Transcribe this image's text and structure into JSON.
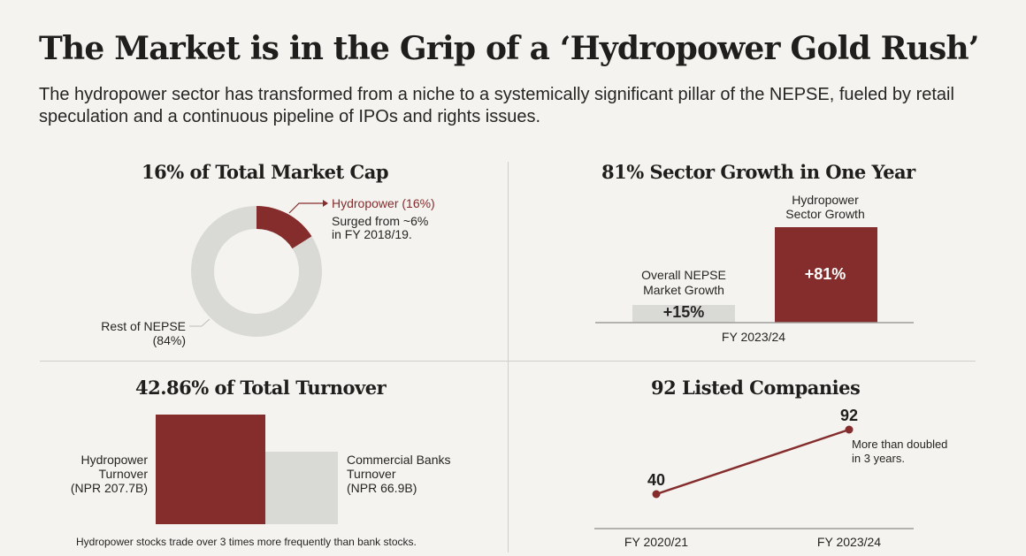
{
  "header": {
    "title": "The Market is in the Grip of a ‘Hydropower Gold Rush’",
    "subtitle": "The hydropower sector has transformed from a niche to a systemically significant pillar of the NEPSE, fueled by retail speculation and a continuous pipeline of IPOs and rights issues."
  },
  "colors": {
    "accent": "#852d2d",
    "muted": "#d9d9d6",
    "background": "#f4f3ef",
    "text": "#1f1e1c"
  },
  "chart_data": [
    {
      "id": "market-cap",
      "type": "pie",
      "title": "16% of Total Market Cap",
      "slices": [
        {
          "name": "Hydropower",
          "value": 16,
          "label": "Hydropower (16%)",
          "note": [
            "Surged from ~6%",
            "in FY 2018/19."
          ]
        },
        {
          "name": "Rest of NEPSE",
          "value": 84,
          "label": [
            "Rest of NEPSE",
            "(84%)"
          ]
        }
      ]
    },
    {
      "id": "sector-growth",
      "type": "bar",
      "title": "81% Sector Growth in One Year",
      "xlabel": "FY 2023/24",
      "categories": [
        "Overall NEPSE Market Growth",
        "Hydropower Sector Growth"
      ],
      "category_labels": [
        [
          "Overall NEPSE",
          "Market Growth"
        ],
        [
          "Hydropower",
          "Sector Growth"
        ]
      ],
      "values": [
        15,
        81
      ],
      "value_labels": [
        "+15%",
        "+81%"
      ],
      "ylim": [
        0,
        81
      ]
    },
    {
      "id": "turnover",
      "type": "bar",
      "title": "42.86% of Total Turnover",
      "categories": [
        "Hydropower Turnover",
        "Commercial Banks Turnover"
      ],
      "category_labels": [
        [
          "Hydropower",
          "Turnover",
          "(NPR 207.7B)"
        ],
        [
          "Commercial Banks",
          "Turnover",
          "(NPR 66.9B)"
        ]
      ],
      "values": [
        207.7,
        66.9
      ],
      "unit": "NPR B",
      "footnote": "Hydropower stocks trade over 3 times more frequently than bank stocks."
    },
    {
      "id": "listed-companies",
      "type": "line",
      "title": "92 Listed Companies",
      "x": [
        "FY 2020/21",
        "FY 2023/24"
      ],
      "values": [
        40,
        92
      ],
      "value_labels": [
        "40",
        "92"
      ],
      "annotation": [
        "More than doubled",
        "in 3 years."
      ]
    }
  ]
}
